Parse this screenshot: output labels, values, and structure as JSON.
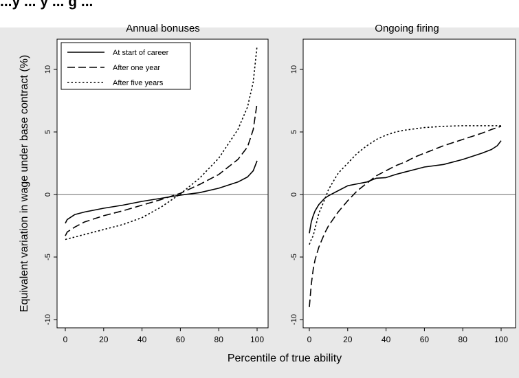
{
  "caption_partial": "...y ... y ... g ...",
  "chart_data": [
    {
      "type": "line",
      "title": "Annual bonuses",
      "xlabel": "Percentile of true ability",
      "ylabel": "Equivalent variation in wage under base contract (%)",
      "xlim": [
        0,
        100
      ],
      "ylim": [
        -10,
        12
      ],
      "xticks": [
        0,
        20,
        40,
        60,
        80,
        100
      ],
      "yticks": [
        -10,
        -5,
        0,
        5,
        10
      ],
      "grid": false,
      "reference_line_y": 0,
      "legend": {
        "position": "top-left",
        "entries": [
          "At start of career",
          "After one year",
          "After five years"
        ]
      },
      "x": [
        0,
        1,
        5,
        10,
        20,
        30,
        40,
        50,
        60,
        70,
        80,
        90,
        95,
        98,
        100
      ],
      "series": [
        {
          "name": "At start of career",
          "style": "solid",
          "values": [
            -2.3,
            -2.0,
            -1.6,
            -1.4,
            -1.1,
            -0.85,
            -0.55,
            -0.3,
            -0.05,
            0.15,
            0.5,
            1.0,
            1.4,
            1.9,
            2.7
          ]
        },
        {
          "name": "After one year",
          "style": "dashed",
          "values": [
            -3.3,
            -3.0,
            -2.6,
            -2.2,
            -1.7,
            -1.3,
            -0.85,
            -0.4,
            0.1,
            0.8,
            1.6,
            2.8,
            3.8,
            5.2,
            7.3
          ]
        },
        {
          "name": "After five years",
          "style": "dotted",
          "values": [
            -3.6,
            -3.55,
            -3.4,
            -3.2,
            -2.8,
            -2.4,
            -1.85,
            -1.0,
            0.05,
            1.3,
            2.9,
            5.2,
            7.0,
            9.0,
            11.9
          ]
        }
      ]
    },
    {
      "type": "line",
      "title": "Ongoing firing",
      "xlabel": "Percentile of true ability",
      "xlim": [
        0,
        100
      ],
      "ylim": [
        -10,
        12
      ],
      "xticks": [
        0,
        20,
        40,
        60,
        80,
        100
      ],
      "yticks": [
        -10,
        -5,
        0,
        5,
        10
      ],
      "grid": false,
      "reference_line_y": 0,
      "x": [
        0,
        1,
        2,
        3,
        5,
        8,
        10,
        15,
        20,
        25,
        30,
        35,
        40,
        45,
        50,
        55,
        60,
        70,
        80,
        90,
        95,
        98,
        100
      ],
      "series": [
        {
          "name": "At start of career",
          "style": "solid",
          "values": [
            -3.1,
            -2.2,
            -1.7,
            -1.3,
            -0.8,
            -0.3,
            -0.1,
            0.3,
            0.7,
            0.85,
            1.0,
            1.3,
            1.35,
            1.6,
            1.8,
            2.0,
            2.2,
            2.4,
            2.8,
            3.3,
            3.6,
            3.9,
            4.3
          ]
        },
        {
          "name": "After one year",
          "style": "dashed",
          "values": [
            -9.0,
            -7.2,
            -6.0,
            -5.2,
            -4.2,
            -3.1,
            -2.5,
            -1.4,
            -0.5,
            0.3,
            0.9,
            1.5,
            1.9,
            2.3,
            2.6,
            3.0,
            3.3,
            3.9,
            4.4,
            4.9,
            5.2,
            5.35,
            5.45
          ]
        },
        {
          "name": "After five years",
          "style": "dotted",
          "values": [
            -4.0,
            -3.6,
            -3.3,
            -2.7,
            -1.5,
            -0.4,
            0.4,
            1.7,
            2.5,
            3.3,
            3.9,
            4.4,
            4.75,
            5.0,
            5.15,
            5.25,
            5.35,
            5.45,
            5.5,
            5.5,
            5.5,
            5.5,
            5.5
          ]
        }
      ]
    }
  ]
}
